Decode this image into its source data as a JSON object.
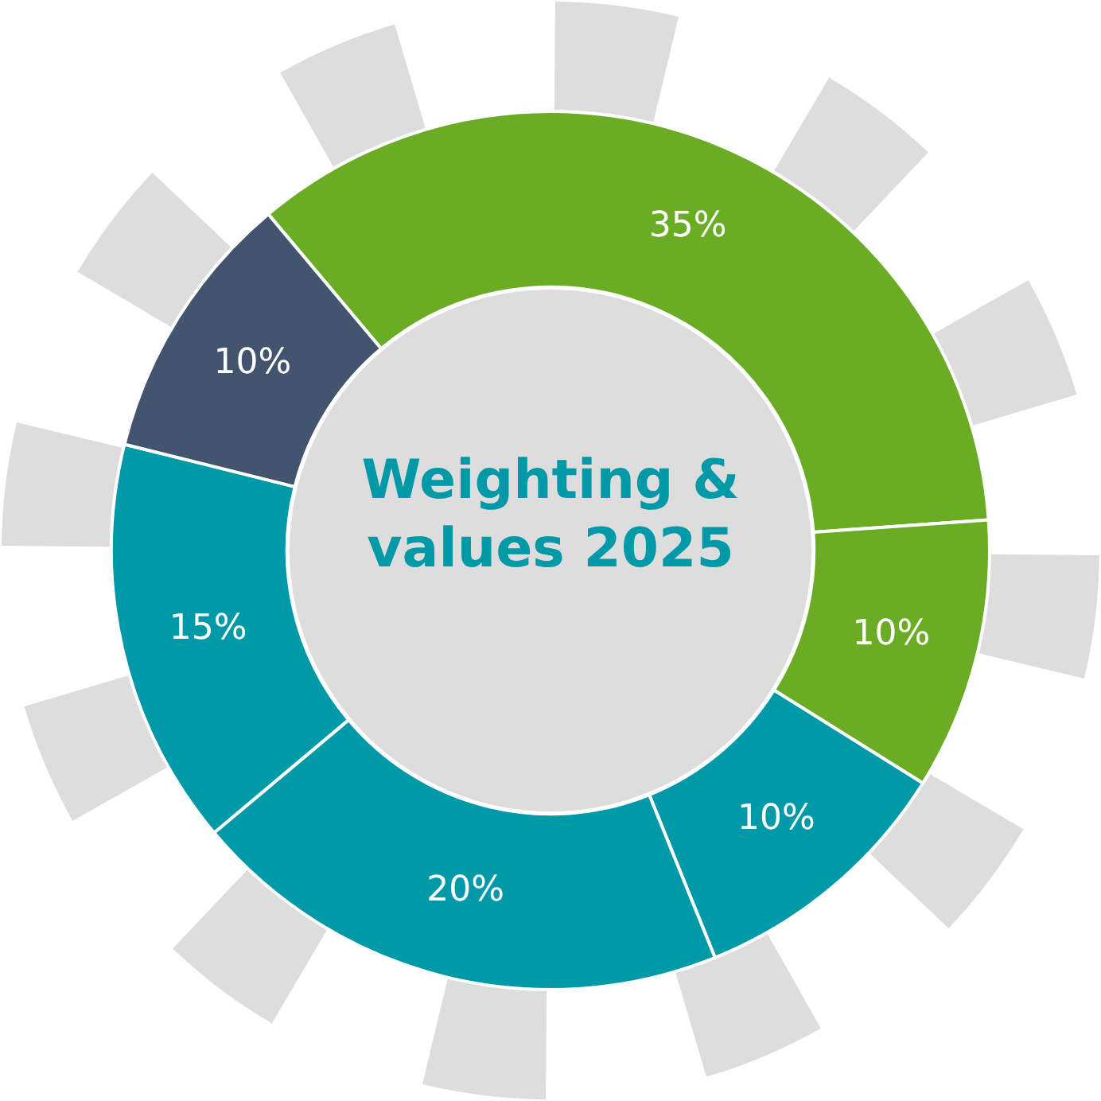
{
  "chart_data": {
    "type": "donut",
    "title": "Weighting & values 2025",
    "categories": [
      null,
      null,
      null,
      null,
      null,
      null
    ],
    "values": [
      35,
      10,
      10,
      20,
      15,
      10
    ],
    "colors": [
      "#6aad25",
      "#6aad25",
      "#0099a8",
      "#0099a8",
      "#0099a8",
      "#43546e"
    ],
    "value_labels": [
      "35%",
      "10%",
      "10%",
      "20%",
      "15%",
      "10%"
    ]
  }
}
